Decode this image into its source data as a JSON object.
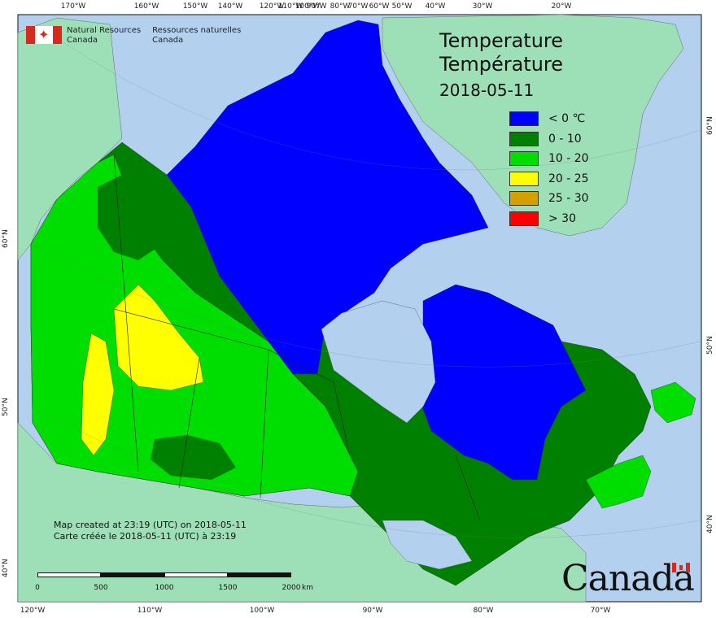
{
  "map": {
    "title_en": "Temperature",
    "title_fr": "Température",
    "date": "2018-05-11",
    "agency": {
      "en_line1": "Natural Resources",
      "en_line2": "Canada",
      "fr_line1": "Ressources naturelles",
      "fr_line2": "Canada",
      "flag_icon": "canada-flag-icon"
    },
    "wordmark": "Canada",
    "notes": {
      "created_en": "Map created at 23:19 (UTC) on 2018-05-11",
      "created_fr": "Carte créée le 2018-05-11 (UTC) à 23:19"
    },
    "scale": {
      "unit": "km",
      "labels": [
        "0",
        "500",
        "1000",
        "1500",
        "2000"
      ]
    },
    "legend": [
      {
        "label": "< 0 ℃",
        "color": "#0000ff"
      },
      {
        "label": "0 - 10",
        "color": "#008000"
      },
      {
        "label": "10 - 20",
        "color": "#00dd00"
      },
      {
        "label": "20 - 25",
        "color": "#ffff00"
      },
      {
        "label": "25 - 30",
        "color": "#d4a000"
      },
      {
        "label": "> 30",
        "color": "#ff0000"
      }
    ],
    "graticule": {
      "top_longitudes": [
        "170°W",
        "160°W",
        "150°W",
        "140°W",
        "120°W",
        "110°W",
        "100°W",
        "90°W",
        "80°W",
        "70°W",
        "60°W",
        "50°W",
        "40°W",
        "30°W",
        "20°W"
      ],
      "bottom_longitudes": [
        "120°W",
        "110°W",
        "100°W",
        "90°W",
        "80°W",
        "70°W"
      ],
      "left_latitudes": [
        "60°N",
        "50°N",
        "40°N"
      ],
      "right_latitudes": [
        "60°N",
        "50°N",
        "40°N"
      ]
    },
    "colors": {
      "ocean": "#b3d1ef",
      "land_other": "#9de0b8",
      "cold": "#0000ff",
      "zero_ten": "#008000",
      "ten_twenty": "#00dd00",
      "twenty_25": "#ffff00"
    }
  }
}
